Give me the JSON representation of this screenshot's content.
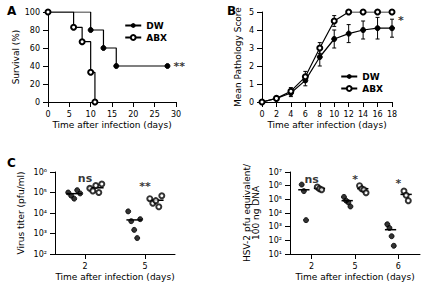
{
  "chart_data": [
    {
      "type": "step",
      "title": "A",
      "xlabel": "Time after infection (days)",
      "ylabel": "Survival (%)",
      "xlim": [
        0,
        30
      ],
      "xticks": [
        0,
        5,
        10,
        15,
        20,
        25,
        30
      ],
      "ylim": [
        0,
        100
      ],
      "yticks": [
        0,
        20,
        40,
        60,
        80,
        100
      ],
      "legend": "upper right",
      "series": [
        {
          "name": "DW",
          "color": "#000000",
          "marker": "circle",
          "x": [
            0,
            10,
            13,
            16,
            28
          ],
          "values": [
            100,
            80,
            60,
            40,
            40
          ]
        },
        {
          "name": "ABX",
          "color": "#000000",
          "marker": "open-circle",
          "x": [
            0,
            6,
            8,
            10,
            11
          ],
          "values": [
            100,
            83,
            67,
            33,
            0
          ]
        }
      ],
      "annotations": [
        {
          "text": "**",
          "x": 28,
          "y": 40
        }
      ]
    },
    {
      "type": "line",
      "title": "B",
      "xlabel": "Time after infection (days)",
      "ylabel": "Mean Pathology Score",
      "xlim": [
        0,
        18
      ],
      "xticks": [
        0,
        2,
        4,
        6,
        8,
        10,
        12,
        14,
        16,
        18
      ],
      "ylim": [
        0,
        5
      ],
      "yticks": [
        0,
        1,
        2,
        3,
        4,
        5
      ],
      "legend": "lower right",
      "x": [
        0,
        2,
        4,
        6,
        8,
        10,
        12,
        14,
        16,
        18
      ],
      "series": [
        {
          "name": "DW",
          "color": "#000000",
          "marker": "circle",
          "values": [
            0,
            0.2,
            0.5,
            1.2,
            2.5,
            3.5,
            3.8,
            4.0,
            4.1,
            4.1
          ],
          "errors": [
            0,
            0.1,
            0.2,
            0.3,
            0.5,
            0.5,
            0.5,
            0.5,
            0.6,
            0.5
          ]
        },
        {
          "name": "ABX",
          "color": "#000000",
          "marker": "open-circle",
          "values": [
            0,
            0.2,
            0.6,
            1.4,
            3.0,
            4.5,
            5,
            5,
            5,
            5
          ],
          "errors": [
            0,
            0.1,
            0.2,
            0.3,
            0.3,
            0.3,
            0,
            0,
            0,
            0
          ]
        }
      ],
      "annotations": [
        {
          "text": "*",
          "x": 18,
          "y": 4.55
        }
      ]
    },
    {
      "type": "scatter",
      "title": "C",
      "xlabel": "Time after infection (days)",
      "ylabel": "Virus titer (pfu/ml)",
      "categories": [
        "2",
        "5"
      ],
      "log": "y",
      "ylim": [
        100,
        1000000
      ],
      "yticks": [
        {
          "value": 100,
          "label": "10²"
        },
        {
          "value": 1000,
          "label": "10³"
        },
        {
          "value": 10000,
          "label": "10⁴"
        },
        {
          "value": 100000,
          "label": "10⁵"
        },
        {
          "value": 1000000,
          "label": "10⁶"
        }
      ],
      "series": [
        {
          "name": "DW",
          "color": "#000000",
          "marker": "circle",
          "values": [
            [
              100000,
              70000,
              50000,
              130000,
              90000
            ],
            [
              12000,
              4000,
              1500,
              600,
              5000
            ]
          ],
          "mean": [
            88000,
            4600
          ]
        },
        {
          "name": "ABX",
          "color": "#000000",
          "marker": "open-circle",
          "values": [
            [
              160000,
              120000,
              220000,
              100000,
              260000
            ],
            [
              50000,
              30000,
              40000,
              20000,
              70000
            ]
          ],
          "mean": [
            170000,
            42000
          ]
        }
      ],
      "annotations": [
        {
          "text": "ns",
          "x": "2",
          "y": 500000
        },
        {
          "text": "**",
          "x": "5",
          "y": 200000
        }
      ]
    },
    {
      "type": "scatter",
      "xlabel": "Time after infection (days)",
      "ylabel": "HSV-2 pfu equivalent/\n100 ng DNA",
      "categories": [
        "2",
        "5",
        "6"
      ],
      "log": "y",
      "ylim": [
        10,
        10000000
      ],
      "yticks": [
        {
          "value": 10,
          "label": "10¹"
        },
        {
          "value": 100,
          "label": "10²"
        },
        {
          "value": 1000,
          "label": "10³"
        },
        {
          "value": 10000,
          "label": "10⁴"
        },
        {
          "value": 100000,
          "label": "10⁵"
        },
        {
          "value": 1000000,
          "label": "10⁶"
        },
        {
          "value": 10000000,
          "label": "10⁷"
        }
      ],
      "series": [
        {
          "name": "DW",
          "color": "#000000",
          "marker": "circle",
          "values": [
            [
              1200000,
              400000,
              3000
            ],
            [
              150000,
              80000,
              60000,
              30000
            ],
            [
              1500,
              800,
              200,
              40
            ]
          ],
          "mean": [
            500000,
            80000,
            600
          ]
        },
        {
          "name": "ABX",
          "color": "#000000",
          "marker": "open-circle",
          "values": [
            [
              800000,
              600000,
              500000
            ],
            [
              1000000,
              600000,
              500000,
              300000
            ],
            [
              400000,
              200000,
              80000
            ]
          ],
          "mean": [
            630000,
            600000,
            230000
          ]
        }
      ],
      "annotations": [
        {
          "text": "ns",
          "x": "2",
          "y": 3000000
        },
        {
          "text": "*",
          "x": "5",
          "y": 3000000
        },
        {
          "text": "*",
          "x": "6",
          "y": 1500000
        }
      ]
    }
  ]
}
